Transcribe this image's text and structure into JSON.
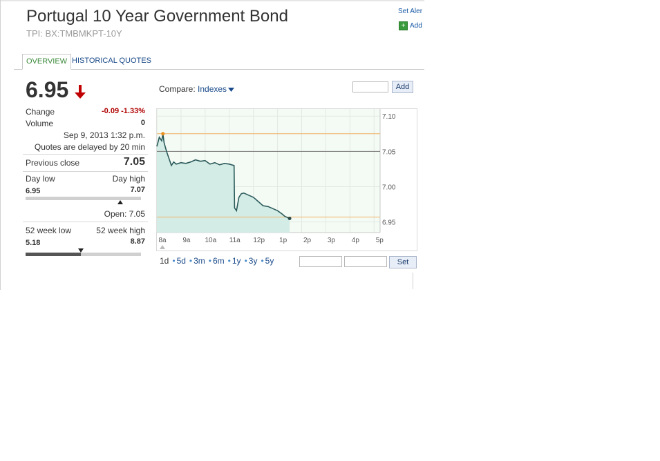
{
  "header": {
    "title": "Portugal 10 Year Government Bond",
    "ticker": "TPI: BX:TMBMKPT-10Y",
    "set_alert": "Set Aler",
    "add": "Add"
  },
  "tabs": [
    {
      "label": "OVERVIEW",
      "active": true
    },
    {
      "label": "HISTORICAL QUOTES",
      "active": false
    }
  ],
  "quote": {
    "price": "6.95",
    "direction": "down",
    "change_label": "Change",
    "change_value": "-0.09 -1.33%",
    "volume_label": "Volume",
    "volume_value": "0",
    "timestamp": "Sep 9, 2013 1:32 p.m.",
    "delay_note": "Quotes are delayed by 20 min",
    "prev_close_label": "Previous close",
    "prev_close_value": "7.05",
    "day_low_label": "Day low",
    "day_high_label": "Day high",
    "day_low": "6.95",
    "day_high": "7.07",
    "open_text": "Open: 7.05",
    "week52_low_label": "52 week low",
    "week52_high_label": "52 week high",
    "week52_low": "5.18",
    "week52_high": "8.87",
    "week52_position": 0.48
  },
  "compare": {
    "label": "Compare:",
    "link": "Indexes",
    "add_button": "Add"
  },
  "ranges": {
    "options": [
      "1d",
      "5d",
      "3m",
      "6m",
      "1y",
      "3y",
      "5y"
    ],
    "active": "1d",
    "set_button": "Set"
  },
  "colors": {
    "line": "#2a5a5a",
    "area": "#d4ece6",
    "positive_down": "#b00000",
    "ref_line": "#f0b060"
  },
  "chart_data": {
    "type": "line",
    "x_ticks": [
      "8a",
      "9a",
      "10a",
      "11a",
      "12p",
      "1p",
      "2p",
      "3p",
      "4p",
      "5p"
    ],
    "y_ticks": [
      "7.10",
      "7.05",
      "7.00",
      "6.95"
    ],
    "ylim": [
      6.935,
      7.11
    ],
    "xlim": [
      8,
      17.25
    ],
    "previous_close": 7.05,
    "high_marker": 7.075,
    "low_marker": 6.955,
    "series": [
      {
        "x": [
          8.0,
          8.1,
          8.2,
          8.25,
          8.3,
          8.4,
          8.5,
          8.6,
          8.7,
          8.8,
          9.0,
          9.2,
          9.4,
          9.6,
          9.8,
          10.0,
          10.2,
          10.4,
          10.6,
          10.8,
          11.0,
          11.2,
          11.22,
          11.3,
          11.4,
          11.5,
          11.6,
          11.8,
          12.0,
          12.2,
          12.4,
          12.6,
          12.8,
          13.0,
          13.2,
          13.3,
          13.5
        ],
        "y": [
          7.057,
          7.07,
          7.065,
          7.075,
          7.062,
          7.05,
          7.04,
          7.03,
          7.035,
          7.032,
          7.034,
          7.033,
          7.035,
          7.038,
          7.036,
          7.037,
          7.032,
          7.034,
          7.031,
          7.033,
          7.032,
          7.03,
          6.97,
          6.966,
          6.985,
          6.99,
          6.991,
          6.988,
          6.985,
          6.979,
          6.973,
          6.972,
          6.969,
          6.966,
          6.961,
          6.958,
          6.955
        ]
      }
    ]
  }
}
